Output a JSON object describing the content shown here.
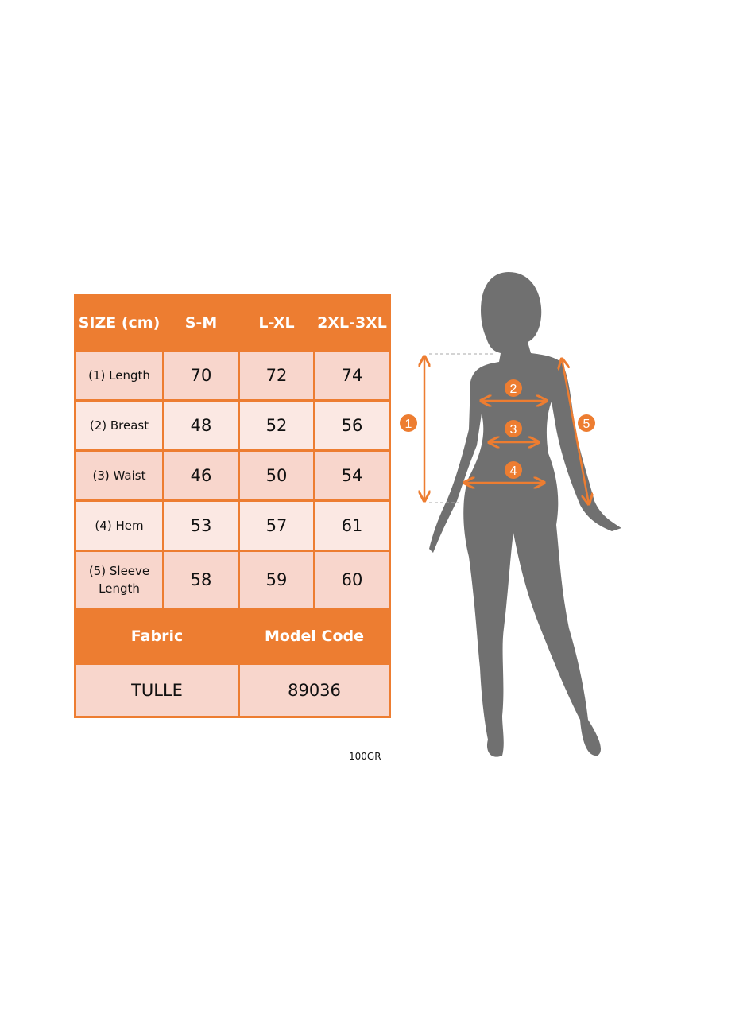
{
  "size_table": {
    "header": [
      "SIZE (cm)",
      "S-M",
      "L-XL",
      "2XL-3XL"
    ],
    "rows": [
      {
        "label": "(1) Length",
        "values": [
          "70",
          "72",
          "74"
        ]
      },
      {
        "label": "(2) Breast",
        "values": [
          "48",
          "52",
          "56"
        ]
      },
      {
        "label": "(3) Waist",
        "values": [
          "46",
          "50",
          "54"
        ]
      },
      {
        "label": "(4) Hem",
        "values": [
          "53",
          "57",
          "61"
        ]
      },
      {
        "label": "(5) Sleeve Length",
        "values": [
          "58",
          "59",
          "60"
        ]
      }
    ],
    "info_header": [
      "Fabric",
      "Model Code"
    ],
    "info_values": [
      "TULLE",
      "89036"
    ]
  },
  "weight": "100GR",
  "figure": {
    "markers": [
      "1",
      "2",
      "3",
      "4",
      "5"
    ]
  },
  "colors": {
    "accent": "#ed7d31",
    "silhouette": "#707070",
    "row_dark": "#f8d6cc",
    "row_light": "#fbe8e3"
  }
}
